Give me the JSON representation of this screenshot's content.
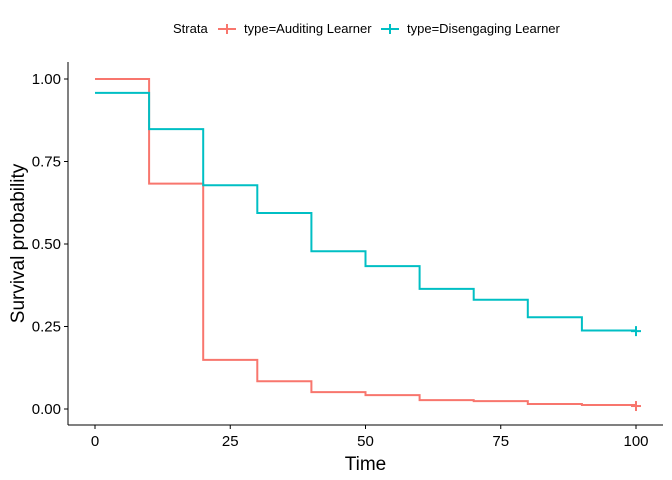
{
  "chart_data": {
    "type": "line",
    "step": true,
    "xlabel": "Time",
    "ylabel": "Survival probability",
    "xlim": [
      0,
      100
    ],
    "ylim": [
      0,
      1
    ],
    "xticks": [
      0,
      25,
      50,
      75,
      100
    ],
    "xtick_labels": [
      "0",
      "25",
      "50",
      "75",
      "100"
    ],
    "yticks": [
      0,
      0.25,
      0.5,
      0.75,
      1
    ],
    "ytick_labels": [
      "0.00",
      "0.25",
      "0.50",
      "0.75",
      "1.00"
    ],
    "grid": false,
    "legend": {
      "position": "top",
      "title": "Strata",
      "items": [
        "type=Auditing Learner",
        "type=Disengaging Learner"
      ]
    },
    "series": [
      {
        "name": "type=Auditing Learner",
        "color": "#F8766D",
        "x": [
          0,
          10,
          20,
          30,
          40,
          50,
          60,
          70,
          80,
          90,
          100
        ],
        "y": [
          1.0,
          0.683,
          0.149,
          0.084,
          0.051,
          0.042,
          0.027,
          0.024,
          0.015,
          0.012,
          0.009
        ],
        "censor_x": [
          100
        ],
        "censor_y": [
          0.009
        ]
      },
      {
        "name": "type=Disengaging Learner",
        "color": "#00BFC4",
        "x": [
          0,
          10,
          20,
          30,
          40,
          50,
          60,
          70,
          80,
          90,
          100
        ],
        "y": [
          0.958,
          0.848,
          0.678,
          0.594,
          0.478,
          0.433,
          0.364,
          0.331,
          0.278,
          0.238,
          0.236
        ],
        "censor_x": [
          100
        ],
        "censor_y": [
          0.236
        ]
      }
    ]
  }
}
